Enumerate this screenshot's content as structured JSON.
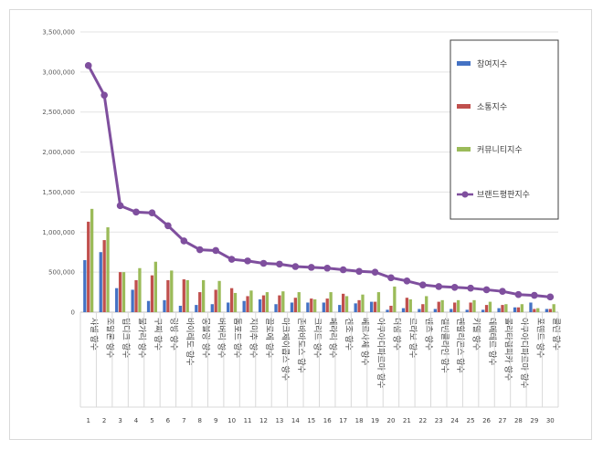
{
  "chart_data": {
    "type": "bar",
    "ylim": [
      0,
      3500000
    ],
    "yticks": [
      "0",
      "500,000",
      "1,000,000",
      "1,500,000",
      "2,000,000",
      "2,500,000",
      "3,000,000",
      "3,500,000"
    ],
    "categories": [
      "샤넬 향수",
      "조말론 향수",
      "딥디크 향수",
      "불가리 향수",
      "구찌 향수",
      "랑방 향수",
      "바이레도 향수",
      "몽블랑 향수",
      "버버리 향수",
      "톰포드 향수",
      "지미추 향수",
      "끌로에 향수",
      "마크제이콥스 향수",
      "존바바토스 향수",
      "크리드 향수",
      "페라리 향수",
      "겐조 향수",
      "베르사체 향수",
      "아쿠아디파르마 향수",
      "더샘 향수",
      "르라보 향수",
      "벤츠 향수",
      "캘빈클라인 향수",
      "펜할리곤스 향수",
      "키엘 향수",
      "데메테르 향수",
      "롤리타렘피카 향수",
      "아쿠아디파르마 향수",
      "포멘트 향수",
      "클린 향수"
    ],
    "index_labels": [
      "1",
      "2",
      "3",
      "4",
      "5",
      "6",
      "7",
      "8",
      "9",
      "10",
      "11",
      "12",
      "13",
      "14",
      "15",
      "16",
      "17",
      "18",
      "19",
      "20",
      "21",
      "22",
      "23",
      "24",
      "25",
      "26",
      "27",
      "28",
      "29",
      "30"
    ],
    "series": [
      {
        "name": "참여지수",
        "kind": "bar",
        "color": "#4472c4",
        "values": [
          650000,
          750000,
          300000,
          280000,
          140000,
          150000,
          80000,
          90000,
          100000,
          120000,
          140000,
          160000,
          100000,
          120000,
          120000,
          120000,
          90000,
          110000,
          130000,
          30000,
          50000,
          40000,
          40000,
          40000,
          30000,
          30000,
          50000,
          60000,
          120000,
          40000
        ]
      },
      {
        "name": "소통지수",
        "kind": "bar",
        "color": "#c0504d",
        "values": [
          1130000,
          900000,
          500000,
          400000,
          460000,
          400000,
          410000,
          250000,
          280000,
          300000,
          200000,
          210000,
          210000,
          180000,
          170000,
          170000,
          230000,
          150000,
          130000,
          80000,
          180000,
          100000,
          130000,
          120000,
          120000,
          90000,
          90000,
          60000,
          40000,
          40000
        ]
      },
      {
        "name": "커뮤니티지수",
        "kind": "bar",
        "color": "#9bbb59",
        "values": [
          1290000,
          1060000,
          500000,
          550000,
          630000,
          520000,
          400000,
          400000,
          390000,
          240000,
          270000,
          250000,
          260000,
          250000,
          160000,
          250000,
          200000,
          220000,
          250000,
          320000,
          160000,
          200000,
          150000,
          150000,
          150000,
          130000,
          100000,
          100000,
          50000,
          100000
        ]
      },
      {
        "name": "브랜드평판지수",
        "kind": "line",
        "color": "#7f4f9e",
        "values": [
          3080000,
          2710000,
          1330000,
          1250000,
          1240000,
          1080000,
          890000,
          780000,
          770000,
          660000,
          640000,
          610000,
          600000,
          570000,
          560000,
          550000,
          530000,
          510000,
          500000,
          430000,
          390000,
          340000,
          320000,
          310000,
          300000,
          280000,
          260000,
          220000,
          210000,
          190000
        ]
      }
    ]
  }
}
